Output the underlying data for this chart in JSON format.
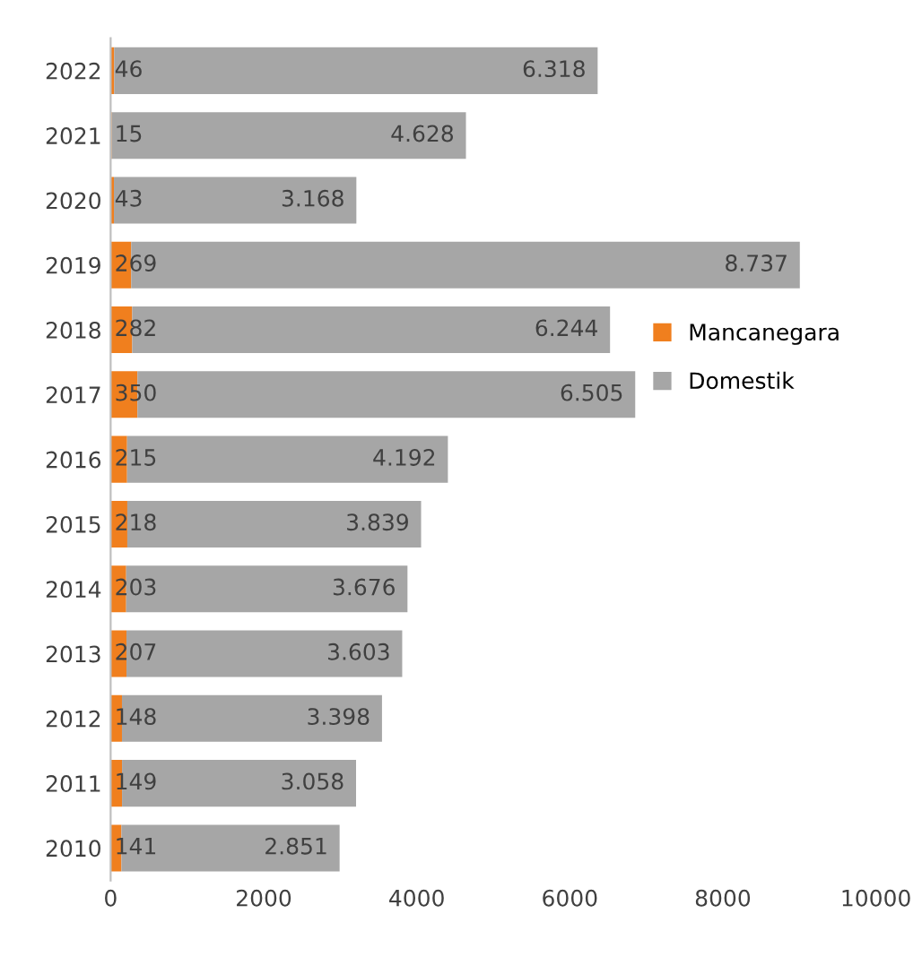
{
  "chart_data": {
    "type": "bar",
    "orientation": "horizontal",
    "stacked": true,
    "categories": [
      "2022",
      "2021",
      "2020",
      "2019",
      "2018",
      "2017",
      "2016",
      "2015",
      "2014",
      "2013",
      "2012",
      "2011",
      "2010"
    ],
    "series": [
      {
        "name": "Mancanegara",
        "color": "#f07f1e",
        "values": [
          46,
          15,
          43,
          269,
          282,
          350,
          215,
          218,
          203,
          207,
          148,
          149,
          141
        ],
        "value_labels": [
          "46",
          "15",
          "43",
          "269",
          "282",
          "350",
          "215",
          "218",
          "203",
          "207",
          "148",
          "149",
          "141"
        ]
      },
      {
        "name": "Domestik",
        "color": "#a6a6a6",
        "values": [
          6318,
          4628,
          3168,
          8737,
          6244,
          6505,
          4192,
          3839,
          3676,
          3603,
          3398,
          3058,
          2851
        ],
        "value_labels": [
          "6.318",
          "4.628",
          "3.168",
          "8.737",
          "6.244",
          "6.505",
          "4.192",
          "3.839",
          "3.676",
          "3.603",
          "3.398",
          "3.058",
          "2.851"
        ]
      }
    ],
    "xlim": [
      0,
      10000
    ],
    "xticks": [
      0,
      2000,
      4000,
      6000,
      8000,
      10000
    ],
    "grid": false,
    "legend": "right"
  }
}
